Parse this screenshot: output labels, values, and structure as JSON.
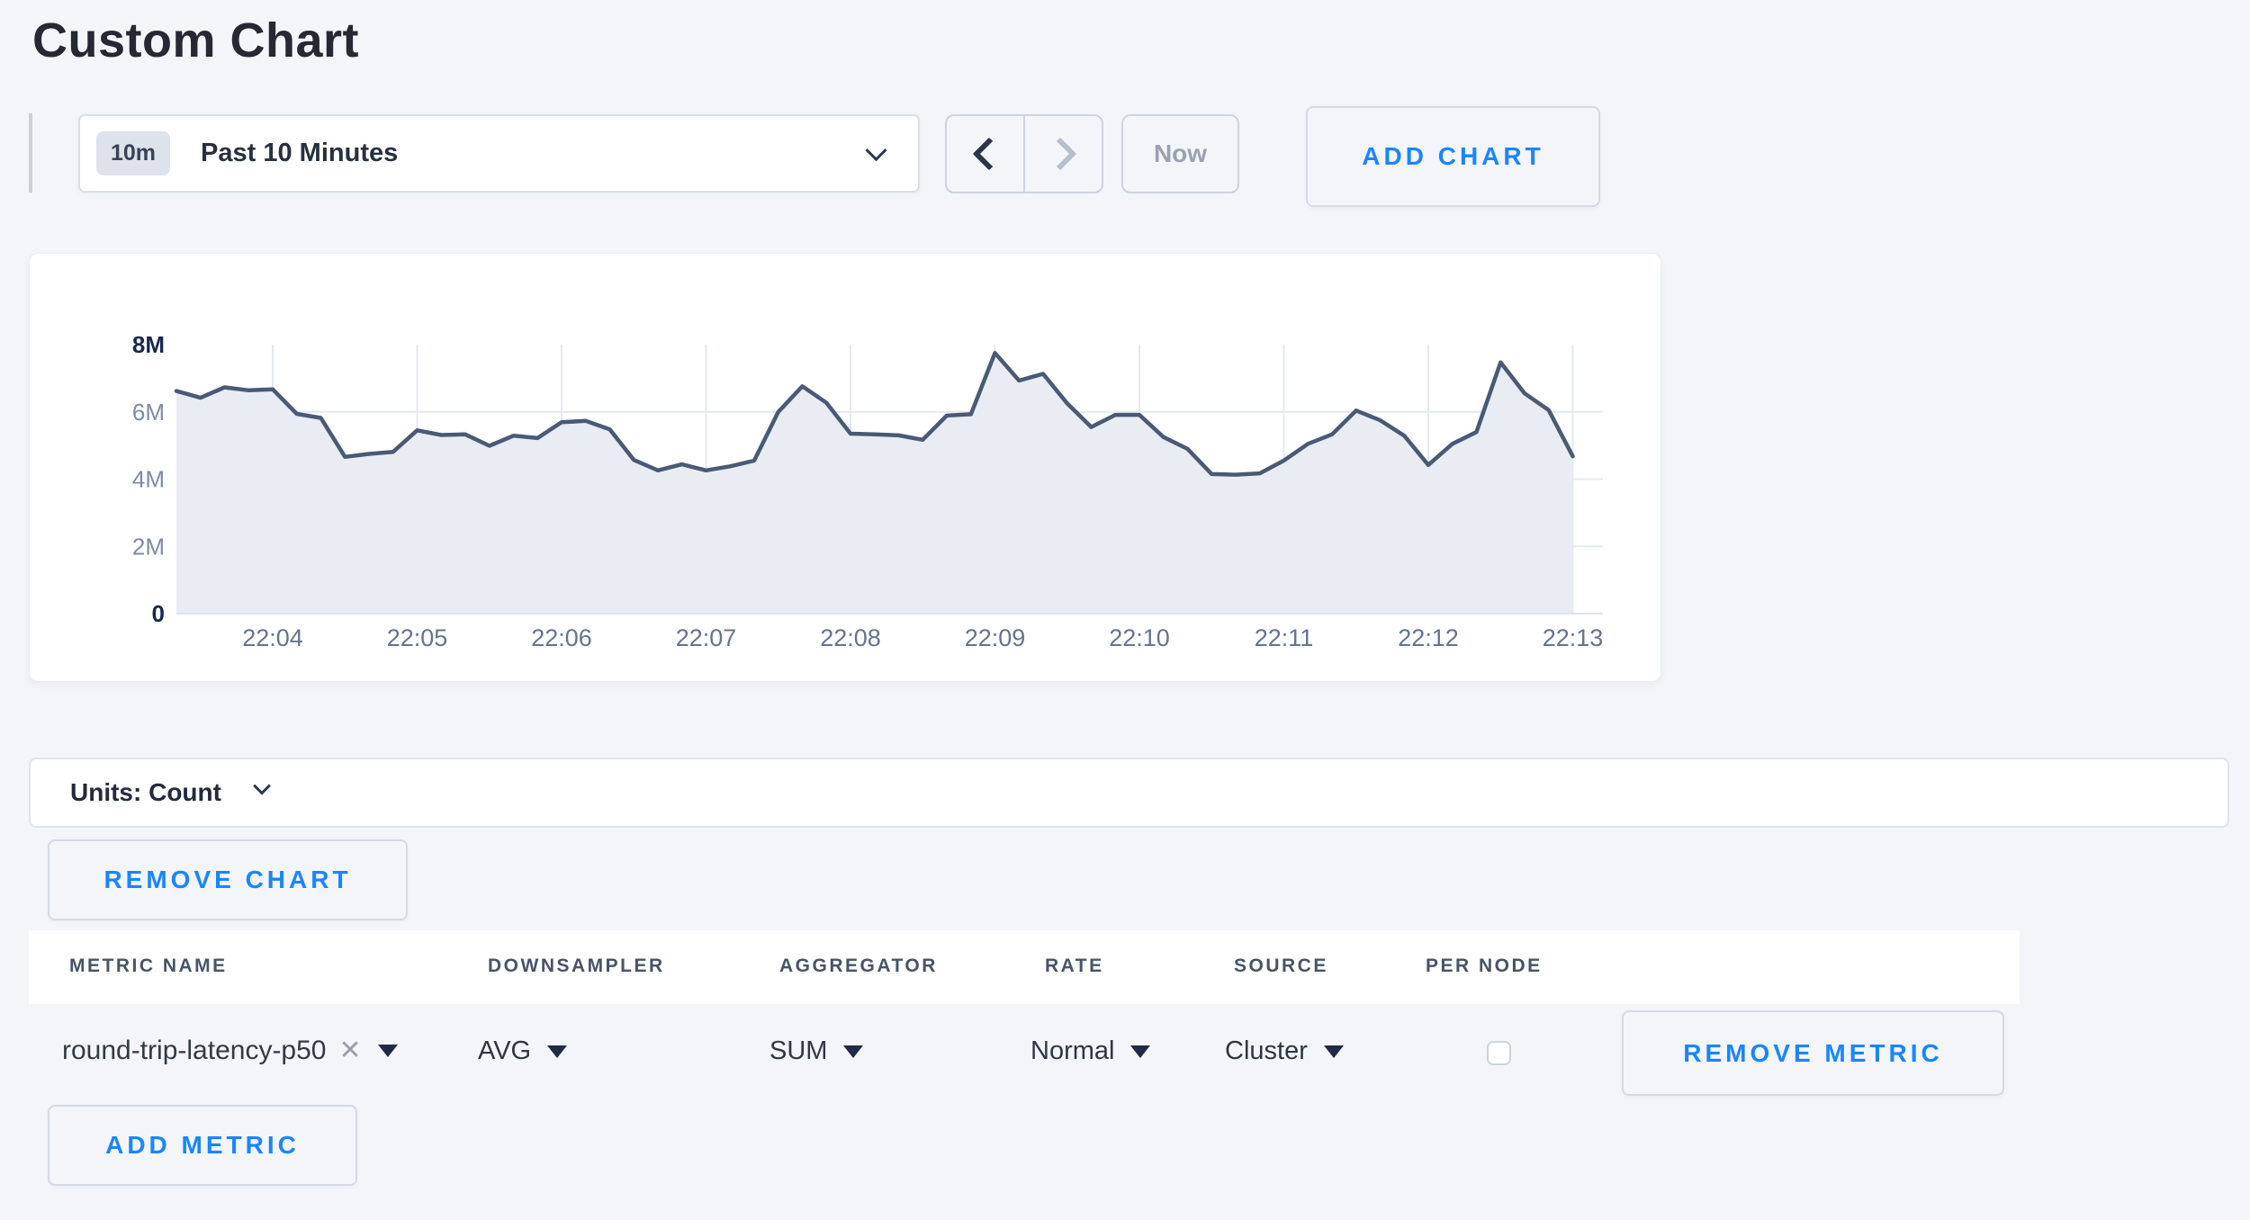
{
  "page": {
    "title": "Custom Chart"
  },
  "toolbar": {
    "time_scale_badge": "10m",
    "time_scale_label": "Past 10 Minutes",
    "prev_icon": "chevron-left",
    "next_icon": "chevron-right",
    "now_label": "Now",
    "add_chart_label": "ADD CHART"
  },
  "units_bar": {
    "label": "Units: Count"
  },
  "buttons": {
    "remove_chart": "REMOVE CHART",
    "remove_metric": "REMOVE METRIC",
    "add_metric": "ADD METRIC"
  },
  "colors": {
    "accent_blue": "#1a85ff",
    "line": "#4a5a75",
    "fill": "#e9ecf2",
    "grid": "#e4e9f0",
    "axis_strong": "#16294e",
    "axis_muted": "#7d8ca3",
    "x_label": "#64748c",
    "page_bg": "#f3f5f9"
  },
  "chart_data": {
    "type": "area",
    "title": "",
    "xlabel": "",
    "ylabel": "",
    "legend": "none",
    "grid": true,
    "start_time": "22:03:20",
    "interval_seconds": 10,
    "ylim": [
      0,
      8000000
    ],
    "x_tick_labels": [
      "22:04",
      "22:05",
      "22:06",
      "22:07",
      "22:08",
      "22:09",
      "22:10",
      "22:11",
      "22:12",
      "22:13"
    ],
    "x_tick_seconds": [
      40,
      100,
      160,
      220,
      280,
      340,
      400,
      460,
      520,
      580
    ],
    "y_ticks": [
      {
        "label": "8M",
        "value": 8000000,
        "strong": true
      },
      {
        "label": "6M",
        "value": 6000000,
        "strong": false
      },
      {
        "label": "4M",
        "value": 4000000,
        "strong": false
      },
      {
        "label": "2M",
        "value": 2000000,
        "strong": false
      },
      {
        "label": "0",
        "value": 0,
        "strong": true
      }
    ],
    "gridline_values": [
      6000000,
      4000000,
      2000000
    ],
    "series": [
      {
        "name": "round-trip-latency-p50",
        "unit": "count",
        "values": [
          6620000,
          6420000,
          6730000,
          6640000,
          6670000,
          5940000,
          5820000,
          4660000,
          4750000,
          4810000,
          5450000,
          5310000,
          5330000,
          4990000,
          5290000,
          5220000,
          5690000,
          5730000,
          5480000,
          4570000,
          4260000,
          4440000,
          4260000,
          4380000,
          4550000,
          6000000,
          6760000,
          6270000,
          5350000,
          5330000,
          5300000,
          5170000,
          5890000,
          5930000,
          7750000,
          6930000,
          7130000,
          6250000,
          5550000,
          5910000,
          5910000,
          5250000,
          4900000,
          4150000,
          4130000,
          4170000,
          4550000,
          5050000,
          5330000,
          6040000,
          5750000,
          5290000,
          4420000,
          5050000,
          5400000,
          7470000,
          6550000,
          6050000,
          4680000
        ]
      }
    ]
  },
  "metrics_table": {
    "columns": [
      "METRIC NAME",
      "DOWNSAMPLER",
      "AGGREGATOR",
      "RATE",
      "SOURCE",
      "PER NODE"
    ],
    "rows": [
      {
        "metric_name": "round-trip-latency-p50",
        "remove_tag_icon": "x-icon",
        "downsampler": "AVG",
        "aggregator": "SUM",
        "rate": "Normal",
        "source": "Cluster",
        "per_node_checked": false
      }
    ]
  }
}
